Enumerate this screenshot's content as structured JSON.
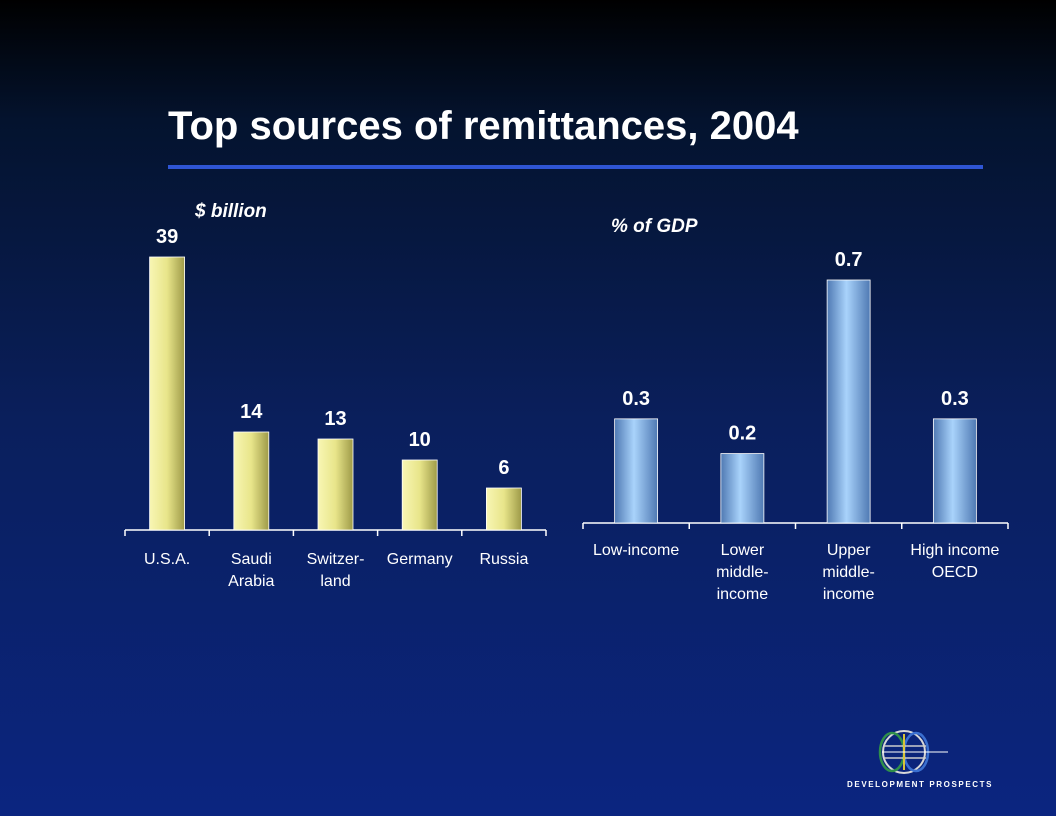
{
  "title": "Top sources of remittances, 2004",
  "logo_text": "DEVELOPMENT PROSPECTS",
  "chart_data": [
    {
      "type": "bar",
      "unit_label": "$ billion",
      "categories": [
        [
          "U.S.A."
        ],
        [
          "Saudi",
          "Arabia"
        ],
        [
          "Switzer-",
          "land"
        ],
        [
          "Germany"
        ],
        [
          "Russia"
        ]
      ],
      "values": [
        39,
        14,
        13,
        10,
        6
      ],
      "value_labels": [
        "39",
        "14",
        "13",
        "10",
        "6"
      ],
      "bar_color": "#e8e58a",
      "ylim": [
        0,
        39
      ]
    },
    {
      "type": "bar",
      "unit_label": "% of GDP",
      "categories": [
        [
          "Low-income"
        ],
        [
          "Lower",
          "middle-",
          "income"
        ],
        [
          "Upper",
          "middle-",
          "income"
        ],
        [
          "High income",
          "OECD"
        ]
      ],
      "values": [
        0.3,
        0.2,
        0.7,
        0.3
      ],
      "value_labels": [
        "0.3",
        "0.2",
        "0.7",
        "0.3"
      ],
      "bar_color": "#8fbff2",
      "ylim": [
        0,
        0.7
      ]
    }
  ]
}
